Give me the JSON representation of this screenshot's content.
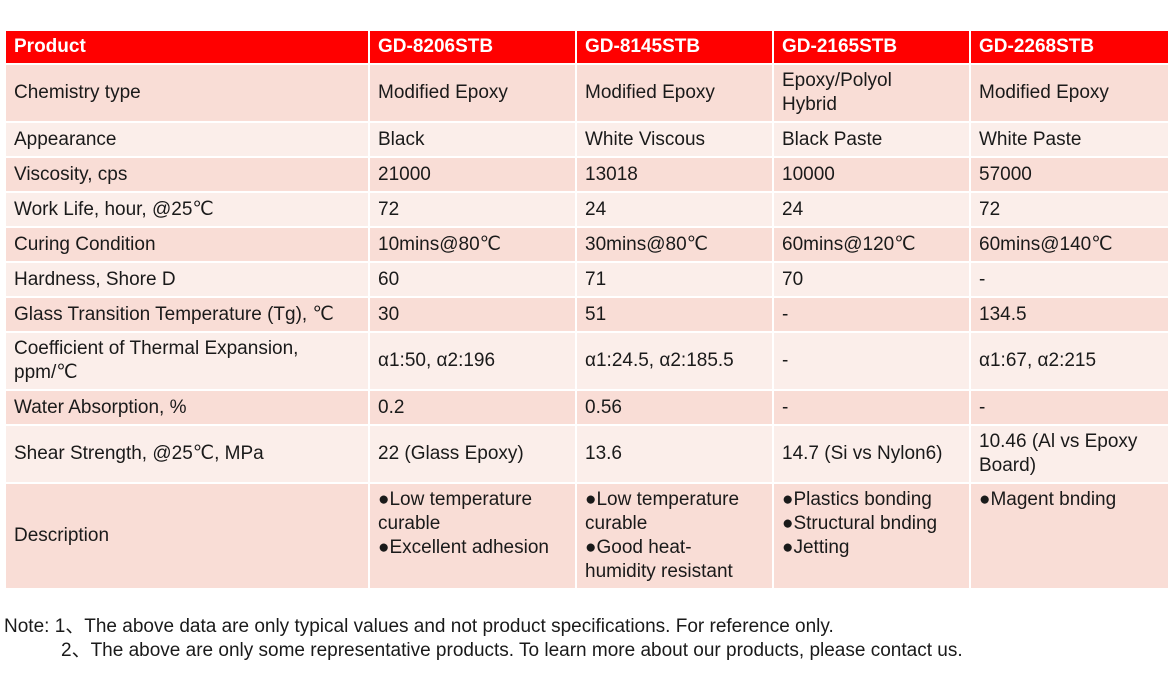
{
  "table": {
    "headers": [
      "Product",
      "GD-8206STB",
      "GD-8145STB",
      "GD-2165STB",
      "GD-2268STB"
    ],
    "rows": [
      {
        "label": "Chemistry type",
        "values": [
          "Modified Epoxy",
          "Modified Epoxy",
          "Epoxy/Polyol\nHybrid",
          "Modified Epoxy"
        ]
      },
      {
        "label": "Appearance",
        "values": [
          "Black",
          "White Viscous",
          "Black Paste",
          "White Paste"
        ]
      },
      {
        "label": "Viscosity, cps",
        "values": [
          "21000",
          "13018",
          "10000",
          "57000"
        ]
      },
      {
        "label": "Work Life, hour, @25℃",
        "values": [
          "72",
          "24",
          "24",
          "72"
        ]
      },
      {
        "label": "Curing Condition",
        "values": [
          "10mins@80℃",
          "30mins@80℃",
          "60mins@120℃",
          "60mins@140℃"
        ]
      },
      {
        "label": "Hardness, Shore D",
        "values": [
          "60",
          "71",
          "70",
          "-"
        ]
      },
      {
        "label": "Glass Transition Temperature (Tg), ℃",
        "values": [
          "30",
          "51",
          "-",
          "134.5"
        ]
      },
      {
        "label": "Coefficient of Thermal Expansion,\nppm/℃",
        "values": [
          "α1:50, α2:196",
          "α1:24.5, α2:185.5",
          "-",
          "α1:67, α2:215"
        ]
      },
      {
        "label": "Water Absorption, %",
        "values": [
          "0.2",
          "0.56",
          "-",
          "-"
        ]
      },
      {
        "label": "Shear Strength, @25℃, MPa",
        "values": [
          "22 (Glass Epoxy)",
          "13.6",
          "14.7 (Si vs Nylon6)",
          "10.46 (Al vs Epoxy\nBoard)"
        ]
      },
      {
        "label": "Description",
        "values": [
          "●Low temperature\ncurable\n●Excellent adhesion",
          "●Low temperature\ncurable\n●Good heat-\nhumidity resistant",
          "●Plastics bonding\n●Structural bnding\n●Jetting",
          "●Magent bnding"
        ]
      }
    ]
  },
  "notes": {
    "line1": "Note: 1、The above data are only typical values and not product specifications. For reference only.",
    "line2": "2、The above are only some representative products. To learn more about our products, please contact us."
  },
  "colors": {
    "header_bg": "#ff0000",
    "row_bg": "#f9ddd6",
    "row_alt_bg": "#fbeeea"
  }
}
